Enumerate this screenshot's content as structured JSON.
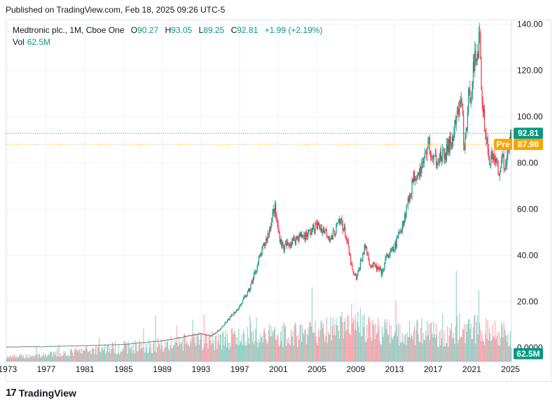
{
  "published": "Published on TradingView.com, Feb 18, 2025 09:26 UTC-5",
  "legend": {
    "symbol": "Medtronic plc., 1M, Cboe One",
    "o_label": "O",
    "o_value": "90.27",
    "h_label": "H",
    "h_value": "93.05",
    "l_label": "L",
    "l_value": "89.25",
    "c_label": "C",
    "c_value": "92.81",
    "change": "+1.99 (+2.19%)"
  },
  "volume_legend": {
    "label": "Vol",
    "value": "62.5M"
  },
  "badges": {
    "last_price": "92.81",
    "pre_label": "Pre",
    "pre_price": "87.98",
    "volume": "62.5M"
  },
  "colors": {
    "up": "#089981",
    "down": "#f23645",
    "pre": "#f7a600",
    "text": "#131722"
  },
  "footer": {
    "brand": "TradingView",
    "mark": "17"
  },
  "chart_data": {
    "type": "candlestick",
    "title": "Medtronic plc., 1M, Cboe One",
    "y_axis": {
      "ticks": [
        0,
        20,
        40,
        60,
        80,
        100,
        120,
        140
      ],
      "tick_labels": [
        "0.0000",
        "20.00",
        "40.00",
        "60.00",
        "80.00",
        "100.00",
        "120.00",
        "140.00"
      ],
      "range": [
        -6,
        142
      ]
    },
    "x_axis": {
      "ticks": [
        1973,
        1977,
        1981,
        1985,
        1989,
        1993,
        1997,
        2001,
        2005,
        2009,
        2013,
        2017,
        2021,
        2025
      ],
      "range": [
        1972.8,
        2025.1
      ]
    },
    "last_price": 92.81,
    "pre_market_price": 87.98,
    "price_series": {
      "name": "Monthly close (approx.)",
      "x": [
        1973,
        1977,
        1981,
        1985,
        1989,
        1991,
        1992,
        1993,
        1994,
        1995,
        1996,
        1997,
        1998,
        1999,
        2000,
        2000.6,
        2001,
        2001.5,
        2002,
        2003,
        2004,
        2005,
        2006,
        2006.5,
        2007,
        2007.5,
        2008,
        2008.7,
        2009.1,
        2009.5,
        2010,
        2010.5,
        2011,
        2011.8,
        2012,
        2013,
        2014,
        2015,
        2016,
        2016.5,
        2017,
        2017.5,
        2018,
        2018.5,
        2019,
        2019.5,
        2020,
        2020.2,
        2020.5,
        2021,
        2021.5,
        2021.8,
        2022,
        2022.5,
        2022.9,
        2023.3,
        2023.8,
        2024,
        2024.5,
        2024.9,
        2025.1
      ],
      "values": [
        0.4,
        0.6,
        0.9,
        1.5,
        3.0,
        4.5,
        5.5,
        6.0,
        5.0,
        8.0,
        13.0,
        18.0,
        25.0,
        38.0,
        50.0,
        61.0,
        50.0,
        43.0,
        45.0,
        48.0,
        49.0,
        53.0,
        50.0,
        47.0,
        52.0,
        55.0,
        48.0,
        32.0,
        30.0,
        37.0,
        44.0,
        36.0,
        35.0,
        32.0,
        38.0,
        43.0,
        56.0,
        74.0,
        80.0,
        89.0,
        80.0,
        83.0,
        82.0,
        86.0,
        90.0,
        100.0,
        108.0,
        82.0,
        100.0,
        116.0,
        128.0,
        134.0,
        111.0,
        90.0,
        80.0,
        84.0,
        74.0,
        82.0,
        80.0,
        88.0,
        92.81
      ]
    },
    "volume_series": {
      "name": "Volume",
      "x": [
        1973,
        1978,
        1983,
        1988,
        1993,
        1997,
        2000,
        2003,
        2005.5,
        2007,
        2008.5,
        2010,
        2012,
        2014,
        2016,
        2018,
        2020,
        2022,
        2024,
        2025
      ],
      "values": [
        3,
        5,
        9,
        11,
        14,
        16,
        18,
        19,
        20,
        22,
        27,
        24,
        20,
        19,
        21,
        17,
        23,
        22,
        20,
        18
      ]
    }
  }
}
